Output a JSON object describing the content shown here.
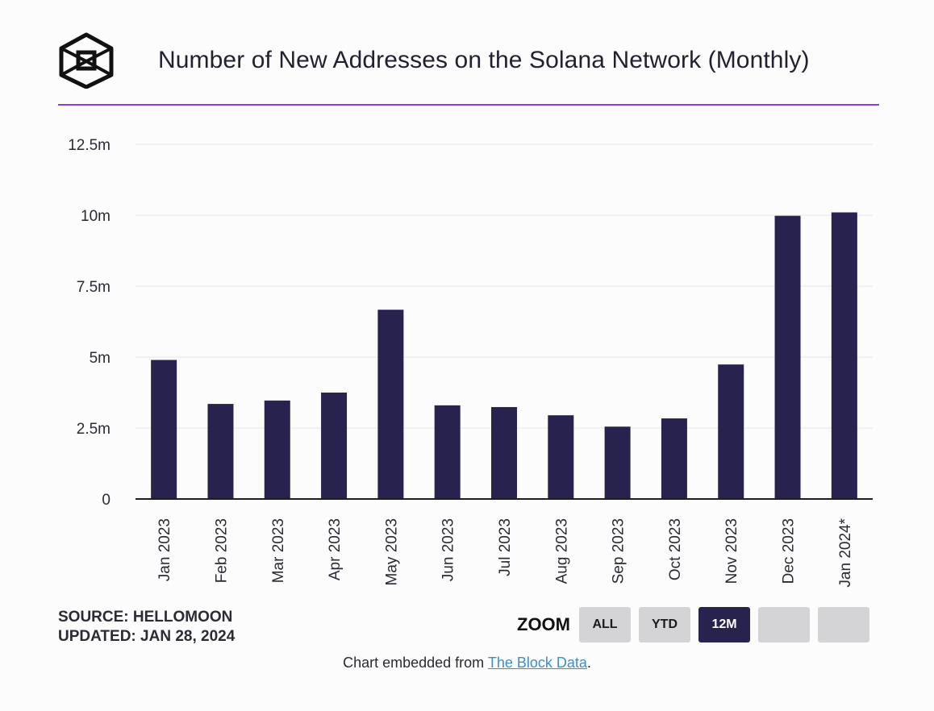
{
  "chart_data": {
    "type": "bar",
    "title": "Number of New Addresses on the Solana Network (Monthly)",
    "categories": [
      "Jan 2023",
      "Feb 2023",
      "Mar 2023",
      "Apr 2023",
      "May 2023",
      "Jun 2023",
      "Jul 2023",
      "Aug 2023",
      "Sep 2023",
      "Oct 2023",
      "Nov 2023",
      "Dec 2023",
      "Jan 2024*"
    ],
    "values": [
      4.9,
      3.35,
      3.47,
      3.75,
      6.67,
      3.3,
      3.24,
      2.95,
      2.55,
      2.84,
      4.74,
      9.98,
      10.1
    ],
    "unit": "millions",
    "ylim": [
      0,
      12.5
    ],
    "yticks": [
      {
        "value": 0,
        "label": "0"
      },
      {
        "value": 2.5,
        "label": "2.5m"
      },
      {
        "value": 5,
        "label": "5m"
      },
      {
        "value": 7.5,
        "label": "7.5m"
      },
      {
        "value": 10,
        "label": "10m"
      },
      {
        "value": 12.5,
        "label": "12.5m"
      }
    ],
    "xlabel": "",
    "ylabel": "",
    "grid": true,
    "bar_color": "#28224f"
  },
  "footer": {
    "source": "SOURCE: HELLOMOON",
    "updated": "UPDATED: JAN 28, 2024",
    "embed_prefix": "Chart embedded from ",
    "embed_link": "The Block Data",
    "embed_suffix": "."
  },
  "zoom": {
    "label": "ZOOM",
    "buttons": [
      "ALL",
      "YTD",
      "12M",
      "",
      ""
    ],
    "active": "12M"
  },
  "colors": {
    "accent": "#8c3fe0",
    "bar": "#28224f",
    "link": "#3b8fc6"
  }
}
